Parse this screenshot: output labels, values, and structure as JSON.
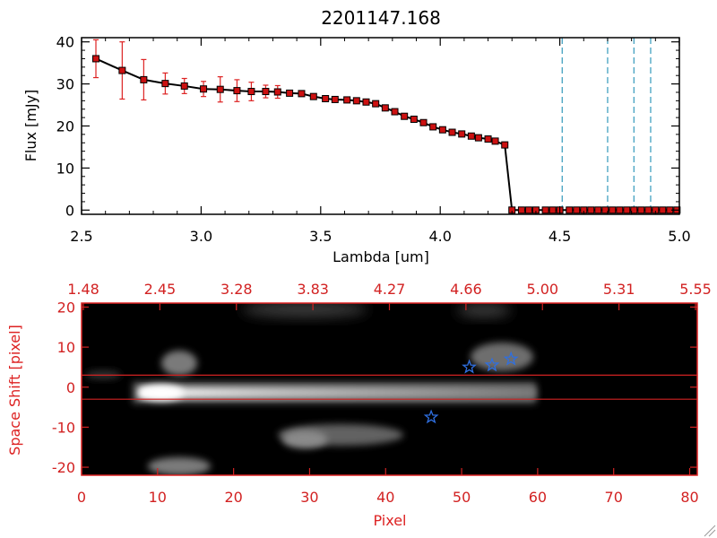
{
  "colors": {
    "spectrum_line": "#000000",
    "markers": "#cc1111",
    "error_bars": "#dd2222",
    "vlines": "#3399bb",
    "lower_axes": "#d22222",
    "star": "#2f6fe0",
    "image_bg": "#000000"
  },
  "chart_data": [
    {
      "type": "line",
      "title": "2201147.168",
      "xlabel": "Lambda [um]",
      "ylabel": "Flux [mJy]",
      "xlim": [
        2.5,
        5.0
      ],
      "ylim": [
        -1,
        41
      ],
      "xticks": [
        "2.5",
        "3.0",
        "3.5",
        "4.0",
        "4.5",
        "5.0"
      ],
      "yticks": [
        "0",
        "10",
        "20",
        "30",
        "40"
      ],
      "series": [
        {
          "x": [
            2.56,
            2.67,
            2.76,
            2.85,
            2.93,
            3.01,
            3.08,
            3.15,
            3.21,
            3.27,
            3.32,
            3.37,
            3.42,
            3.47,
            3.52,
            3.56,
            3.61,
            3.65,
            3.69,
            3.73,
            3.77,
            3.81,
            3.85,
            3.89,
            3.93,
            3.97,
            4.01,
            4.05,
            4.09,
            4.13,
            4.16,
            4.2,
            4.23,
            4.27,
            4.3,
            4.34,
            4.37,
            4.4,
            4.44,
            4.47,
            4.5,
            4.54,
            4.57,
            4.6,
            4.63,
            4.66,
            4.69,
            4.72,
            4.75,
            4.78,
            4.81,
            4.84,
            4.87,
            4.9,
            4.93,
            4.96,
            4.99
          ],
          "y": [
            36,
            33.2,
            31,
            30.1,
            29.5,
            28.8,
            28.7,
            28.4,
            28.2,
            28.2,
            28.1,
            27.8,
            27.7,
            27,
            26.5,
            26.3,
            26.2,
            26,
            25.7,
            25.3,
            24.3,
            23.4,
            22.3,
            21.6,
            20.8,
            19.8,
            19.1,
            18.5,
            18.1,
            17.6,
            17.2,
            16.9,
            16.4,
            15.5,
            0,
            0,
            0,
            0,
            0,
            0,
            0,
            0,
            0,
            0,
            0,
            0,
            0,
            0,
            0,
            0,
            0,
            0,
            0,
            0,
            0,
            0,
            0
          ],
          "yerr": [
            4.5,
            6.8,
            4.8,
            2.5,
            1.8,
            1.8,
            3.0,
            2.6,
            2.2,
            1.5,
            1.5,
            0,
            0,
            0,
            0,
            0,
            0,
            0,
            0,
            0,
            0,
            0,
            0,
            0,
            0,
            0,
            0,
            0,
            0,
            0,
            0,
            0,
            0,
            0,
            0,
            0,
            0,
            0,
            0,
            0,
            0,
            0,
            0,
            0,
            0,
            0,
            0,
            0,
            0,
            0,
            0,
            0,
            0,
            0,
            0,
            0,
            0
          ]
        }
      ],
      "vlines": [
        4.51,
        4.7,
        4.81,
        4.88
      ],
      "grid": false
    },
    {
      "type": "heatmap",
      "xlabel": "Pixel",
      "ylabel": "Space Shift [pixel]",
      "xlim": [
        0,
        81
      ],
      "ylim": [
        -22,
        21
      ],
      "xticks": [
        "0",
        "10",
        "20",
        "30",
        "40",
        "50",
        "60",
        "70",
        "80"
      ],
      "yticks": [
        "-20",
        "-10",
        "0",
        "10",
        "20"
      ],
      "top_ticks": [
        "1.48",
        "2.45",
        "3.28",
        "3.83",
        "4.27",
        "4.66",
        "5.00",
        "5.31",
        "5.55"
      ],
      "hlines": [
        3,
        -3
      ],
      "stars": [
        {
          "x": 51,
          "y": 5
        },
        {
          "x": 54,
          "y": 5.5
        },
        {
          "x": 56.5,
          "y": 7
        },
        {
          "x": 46,
          "y": -7.5
        }
      ]
    }
  ]
}
